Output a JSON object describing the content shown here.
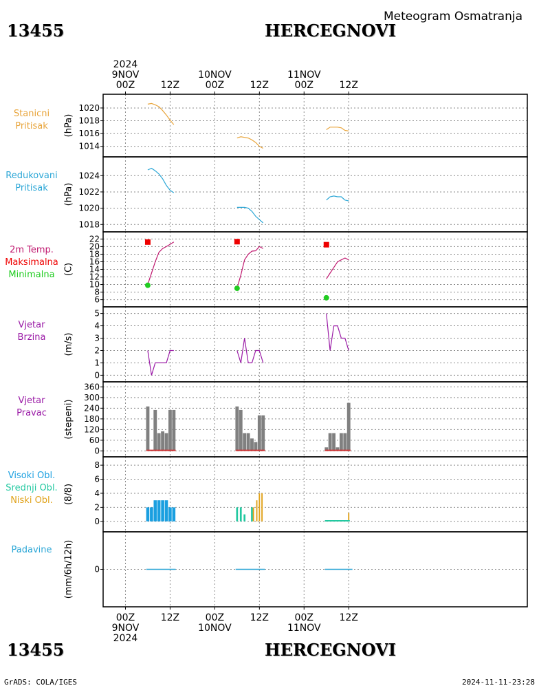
{
  "header": {
    "station_id": "13455",
    "station_name": "HERCEGNOVI",
    "meteogram_title": "Meteogram Osmatranja"
  },
  "footer": {
    "grads": "GrADS: COLA/IGES",
    "timestamp": "2024-11-11-23:28"
  },
  "colors": {
    "station_pressure": "#e8a43a",
    "reduced_pressure": "#2aa6d6",
    "temperature": "#c0186f",
    "t_max": "#ee0000",
    "t_min": "#22cc22",
    "wind": "#9a1aa6",
    "wind_dir_bar": "#808080",
    "wind_dir_base": "#cc3333",
    "cloud_high": "#1a9fe0",
    "cloud_mid": "#22c8a0",
    "cloud_low": "#e0a21a",
    "precip": "#2aa6d6",
    "grid": "#8a8a8a"
  },
  "panel_labels": [
    {
      "lines": [
        "Stanicni",
        "Pritisak"
      ],
      "colors": [
        "#e8a43a",
        "#e8a43a"
      ]
    },
    {
      "lines": [
        "Redukovani",
        "Pritisak"
      ],
      "colors": [
        "#2aa6d6",
        "#2aa6d6"
      ]
    },
    {
      "lines": [
        "2m Temp.",
        "Maksimalna",
        "Minimalna"
      ],
      "colors": [
        "#c0186f",
        "#ee0000",
        "#22cc22"
      ]
    },
    {
      "lines": [
        "Vjetar",
        "Brzina"
      ],
      "colors": [
        "#9a1aa6",
        "#9a1aa6"
      ]
    },
    {
      "lines": [
        "Vjetar",
        "Pravac"
      ],
      "colors": [
        "#9a1aa6",
        "#9a1aa6"
      ]
    },
    {
      "lines": [
        "Visoki Obl.",
        "Srednji Obl.",
        "Niski Obl."
      ],
      "colors": [
        "#1a9fe0",
        "#22c8a0",
        "#e0a21a"
      ]
    },
    {
      "lines": [
        "Padavine"
      ],
      "colors": [
        "#2aa6d6"
      ]
    }
  ],
  "chart_data": {
    "type": "meteogram",
    "x_axis": {
      "unit": "hours since 2024-11-09 00Z",
      "range": [
        -6,
        108
      ],
      "top_labels": [
        {
          "x": 0,
          "lines": [
            "2024",
            "9NOV",
            "00Z"
          ]
        },
        {
          "x": 12,
          "lines": [
            "12Z"
          ]
        },
        {
          "x": 24,
          "lines": [
            "10NOV",
            "00Z"
          ]
        },
        {
          "x": 36,
          "lines": [
            "12Z"
          ]
        },
        {
          "x": 48,
          "lines": [
            "11NOV",
            "00Z"
          ]
        },
        {
          "x": 60,
          "lines": [
            "12Z"
          ]
        }
      ],
      "bottom_labels": [
        {
          "x": 0,
          "lines": [
            "00Z",
            "9NOV",
            "2024"
          ]
        },
        {
          "x": 12,
          "lines": [
            "12Z"
          ]
        },
        {
          "x": 24,
          "lines": [
            "00Z",
            "10NOV"
          ]
        },
        {
          "x": 36,
          "lines": [
            "12Z"
          ]
        },
        {
          "x": 48,
          "lines": [
            "00Z",
            "11NOV"
          ]
        },
        {
          "x": 60,
          "lines": [
            "12Z"
          ]
        }
      ]
    },
    "panels": [
      {
        "id": "station_pressure",
        "ylabel": "(hPa)",
        "ylim": [
          1013,
          1021.5
        ],
        "yticks": [
          1014,
          1016,
          1018,
          1020
        ],
        "series": [
          {
            "type": "line",
            "color": "#e8a43a",
            "points": [
              [
                6,
                1020.6
              ],
              [
                7,
                1020.7
              ],
              [
                8,
                1020.5
              ],
              [
                9,
                1020.2
              ],
              [
                10,
                1019.6
              ],
              [
                11,
                1018.9
              ],
              [
                12,
                1018.1
              ],
              [
                13,
                1017.4
              ]
            ]
          },
          {
            "type": "line",
            "color": "#e8a43a",
            "points": [
              [
                30,
                1015.3
              ],
              [
                31,
                1015.5
              ],
              [
                32,
                1015.4
              ],
              [
                33,
                1015.3
              ],
              [
                34,
                1015.0
              ],
              [
                35,
                1014.6
              ],
              [
                36,
                1014.0
              ],
              [
                37,
                1013.7
              ]
            ]
          },
          {
            "type": "line",
            "color": "#e8a43a",
            "points": [
              [
                54,
                1016.6
              ],
              [
                55,
                1017.0
              ],
              [
                56,
                1017.0
              ],
              [
                57,
                1017.0
              ],
              [
                58,
                1016.9
              ],
              [
                59,
                1016.5
              ],
              [
                60,
                1016.4
              ]
            ]
          }
        ]
      },
      {
        "id": "reduced_pressure",
        "ylabel": "(hPa)",
        "ylim": [
          1017.6,
          1025.8
        ],
        "yticks": [
          1018,
          1020,
          1022,
          1024
        ],
        "series": [
          {
            "type": "line",
            "color": "#2aa6d6",
            "points": [
              [
                6,
                1024.7
              ],
              [
                7,
                1024.9
              ],
              [
                8,
                1024.6
              ],
              [
                9,
                1024.2
              ],
              [
                10,
                1023.6
              ],
              [
                11,
                1022.8
              ],
              [
                12,
                1022.2
              ],
              [
                13,
                1021.9
              ]
            ]
          },
          {
            "type": "line",
            "color": "#2aa6d6",
            "points": [
              [
                30,
                1020.1
              ],
              [
                31,
                1020.1
              ],
              [
                32,
                1020.1
              ],
              [
                33,
                1020.0
              ],
              [
                34,
                1019.6
              ],
              [
                35,
                1019.0
              ],
              [
                36,
                1018.6
              ],
              [
                37,
                1018.2
              ]
            ]
          },
          {
            "type": "line",
            "color": "#2aa6d6",
            "points": [
              [
                54,
                1021.0
              ],
              [
                55,
                1021.4
              ],
              [
                56,
                1021.5
              ],
              [
                57,
                1021.4
              ],
              [
                58,
                1021.4
              ],
              [
                59,
                1021.0
              ],
              [
                60,
                1020.9
              ]
            ]
          }
        ]
      },
      {
        "id": "temperature",
        "ylabel": "(C)",
        "ylim": [
          5.2,
          22.8
        ],
        "yticks": [
          6,
          8,
          10,
          12,
          14,
          16,
          18,
          20,
          22
        ],
        "series": [
          {
            "type": "line",
            "color": "#c0186f",
            "points": [
              [
                6,
                10.0
              ],
              [
                7,
                13.0
              ],
              [
                8,
                16.0
              ],
              [
                9,
                18.5
              ],
              [
                10,
                19.5
              ],
              [
                11,
                20.0
              ],
              [
                12,
                20.6
              ],
              [
                13,
                21.2
              ]
            ]
          },
          {
            "type": "line",
            "color": "#c0186f",
            "points": [
              [
                30,
                9.0
              ],
              [
                31,
                12.5
              ],
              [
                32,
                16.5
              ],
              [
                33,
                18.0
              ],
              [
                34,
                18.8
              ],
              [
                35,
                18.9
              ],
              [
                36,
                20.0
              ],
              [
                37,
                19.5
              ]
            ]
          },
          {
            "type": "line",
            "color": "#c0186f",
            "points": [
              [
                54,
                11.5
              ],
              [
                55,
                13.0
              ],
              [
                56,
                14.5
              ],
              [
                57,
                16.0
              ],
              [
                58,
                16.5
              ],
              [
                59,
                17.0
              ],
              [
                60,
                16.5
              ]
            ]
          },
          {
            "type": "square",
            "color": "#ee0000",
            "points": [
              [
                6,
                21.2
              ],
              [
                30,
                21.3
              ],
              [
                54,
                20.5
              ]
            ]
          },
          {
            "type": "dot",
            "color": "#22cc22",
            "points": [
              [
                6,
                9.8
              ],
              [
                30,
                9.0
              ],
              [
                54,
                6.5
              ]
            ]
          }
        ]
      },
      {
        "id": "wind_speed",
        "ylabel": "(m/s)",
        "ylim": [
          -0.2,
          5.2
        ],
        "yticks": [
          0,
          1,
          2,
          3,
          4,
          5
        ],
        "series": [
          {
            "type": "line",
            "color": "#9a1aa6",
            "points": [
              [
                6,
                2
              ],
              [
                7,
                0
              ],
              [
                8,
                1
              ],
              [
                9,
                1
              ],
              [
                10,
                1
              ],
              [
                11,
                1
              ],
              [
                12,
                2
              ],
              [
                13,
                2
              ]
            ]
          },
          {
            "type": "line",
            "color": "#9a1aa6",
            "points": [
              [
                30,
                2
              ],
              [
                31,
                1
              ],
              [
                32,
                3
              ],
              [
                33,
                1
              ],
              [
                34,
                1
              ],
              [
                35,
                2
              ],
              [
                36,
                2
              ],
              [
                37,
                1
              ]
            ]
          },
          {
            "type": "line",
            "color": "#9a1aa6",
            "points": [
              [
                54,
                5
              ],
              [
                55,
                2
              ],
              [
                56,
                4
              ],
              [
                57,
                4
              ],
              [
                58,
                3
              ],
              [
                59,
                3
              ],
              [
                60,
                2
              ]
            ]
          }
        ]
      },
      {
        "id": "wind_direction",
        "ylabel": "(stepeni)",
        "ylim": [
          -10,
          365
        ],
        "yticks": [
          0,
          60,
          120,
          180,
          240,
          300,
          360
        ],
        "series": [
          {
            "type": "bars",
            "color": "#808080",
            "width": 0.9,
            "points": [
              [
                6,
                250
              ],
              [
                7,
                0
              ],
              [
                8,
                230
              ],
              [
                9,
                100
              ],
              [
                10,
                110
              ],
              [
                11,
                100
              ],
              [
                12,
                230
              ],
              [
                13,
                230
              ]
            ]
          },
          {
            "type": "bars",
            "color": "#808080",
            "width": 0.9,
            "points": [
              [
                30,
                250
              ],
              [
                31,
                230
              ],
              [
                32,
                100
              ],
              [
                33,
                100
              ],
              [
                34,
                70
              ],
              [
                35,
                50
              ],
              [
                36,
                200
              ],
              [
                37,
                200
              ]
            ]
          },
          {
            "type": "bars",
            "color": "#808080",
            "width": 0.9,
            "points": [
              [
                54,
                20
              ],
              [
                55,
                100
              ],
              [
                56,
                100
              ],
              [
                57,
                20
              ],
              [
                58,
                100
              ],
              [
                59,
                100
              ],
              [
                60,
                270
              ]
            ]
          },
          {
            "type": "baseline",
            "color": "#cc3333",
            "ranges": [
              [
                5.6,
                13.5
              ],
              [
                29.6,
                37.5
              ],
              [
                53.6,
                60.5
              ]
            ],
            "y": 3
          }
        ]
      },
      {
        "id": "clouds",
        "ylabel": "(8/8)",
        "ylim": [
          -0.9,
          8.6
        ],
        "yticks": [
          0,
          2,
          4,
          6,
          8
        ],
        "series": [
          {
            "type": "bars",
            "color": "#1a9fe0",
            "width": 0.85,
            "points": [
              [
                6,
                2
              ],
              [
                7,
                2
              ],
              [
                8,
                3
              ],
              [
                9,
                3
              ],
              [
                10,
                3
              ],
              [
                11,
                3
              ],
              [
                12,
                2
              ],
              [
                13,
                2
              ]
            ]
          },
          {
            "type": "bars",
            "color": "#22c8a0",
            "width": 0.5,
            "points": [
              [
                30,
                2
              ],
              [
                31,
                2
              ],
              [
                32,
                1
              ],
              [
                34,
                2
              ]
            ]
          },
          {
            "type": "bars",
            "color": "#e0a21a",
            "width": 0.35,
            "points": [
              [
                34.4,
                2
              ],
              [
                35.3,
                3
              ],
              [
                36,
                4
              ],
              [
                36.7,
                4
              ]
            ]
          },
          {
            "type": "bars",
            "color": "#e0a21a",
            "width": 0.35,
            "points": [
              [
                60,
                1.2
              ]
            ]
          },
          {
            "type": "baseline",
            "color": "#22c8a0",
            "ranges": [
              [
                53.6,
                60.3
              ]
            ],
            "y": 0.08
          }
        ]
      },
      {
        "id": "precipitation",
        "ylabel": "(mm/6h/12h)",
        "ylim": [
          -5,
          5
        ],
        "yticks": [
          0
        ],
        "series": [
          {
            "type": "hline",
            "color": "#2aa6d6",
            "ranges": [
              [
                5.6,
                13.5
              ],
              [
                29.6,
                37.5
              ],
              [
                53.6,
                61
              ]
            ],
            "y": 0
          }
        ]
      }
    ]
  }
}
